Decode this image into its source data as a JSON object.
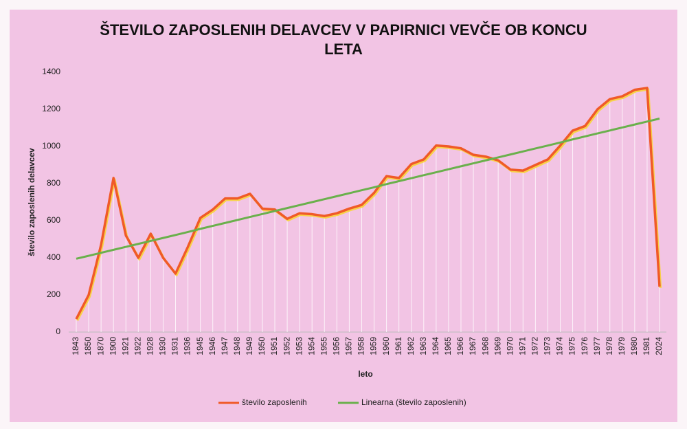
{
  "chart_data": {
    "type": "line",
    "title": "ŠTEVILO ZAPOSLENIH DELAVCEV V PAPIRNICI VEVČE OB KONCU LETA",
    "x_label": "leto",
    "y_label": "število zaposlenih delavcev",
    "categories": [
      "1843",
      "1850",
      "1870",
      "1900",
      "1921",
      "1922",
      "1928",
      "1930",
      "1931",
      "1936",
      "1945",
      "1946",
      "1947",
      "1948",
      "1949",
      "1950",
      "1951",
      "1952",
      "1953",
      "1954",
      "1955",
      "1956",
      "1957",
      "1958",
      "1959",
      "1960",
      "1961",
      "1962",
      "1963",
      "1964",
      "1965",
      "1966",
      "1967",
      "1968",
      "1969",
      "1970",
      "1971",
      "1972",
      "1973",
      "1974",
      "1975",
      "1976",
      "1977",
      "1978",
      "1979",
      "1980",
      "1981",
      "2024"
    ],
    "series": [
      {
        "name": "število zaposlenih",
        "color": "#f05a28",
        "values": [
          70,
          200,
          470,
          830,
          520,
          400,
          530,
          400,
          315,
          460,
          615,
          660,
          720,
          720,
          745,
          665,
          660,
          610,
          640,
          635,
          625,
          640,
          665,
          685,
          750,
          840,
          830,
          905,
          930,
          1005,
          1000,
          990,
          955,
          945,
          925,
          875,
          870,
          900,
          930,
          1005,
          1085,
          1110,
          1200,
          1255,
          1270,
          1305,
          1315,
          245
        ]
      },
      {
        "name": "Linearna (število zaposlenih)",
        "color": "#6ab04c",
        "values": [
          395,
          411,
          427,
          443,
          459,
          475,
          491,
          507,
          523,
          539,
          556,
          572,
          588,
          604,
          620,
          636,
          652,
          668,
          684,
          700,
          716,
          732,
          748,
          764,
          780,
          797,
          813,
          829,
          845,
          861,
          877,
          893,
          909,
          925,
          941,
          957,
          973,
          989,
          1005,
          1021,
          1038,
          1054,
          1070,
          1086,
          1102,
          1118,
          1134,
          1150
        ]
      }
    ],
    "ylim": [
      0,
      1400
    ],
    "yticks": [
      0,
      200,
      400,
      600,
      800,
      1000,
      1200,
      1400
    ],
    "grid": false,
    "legend": "bottom"
  }
}
